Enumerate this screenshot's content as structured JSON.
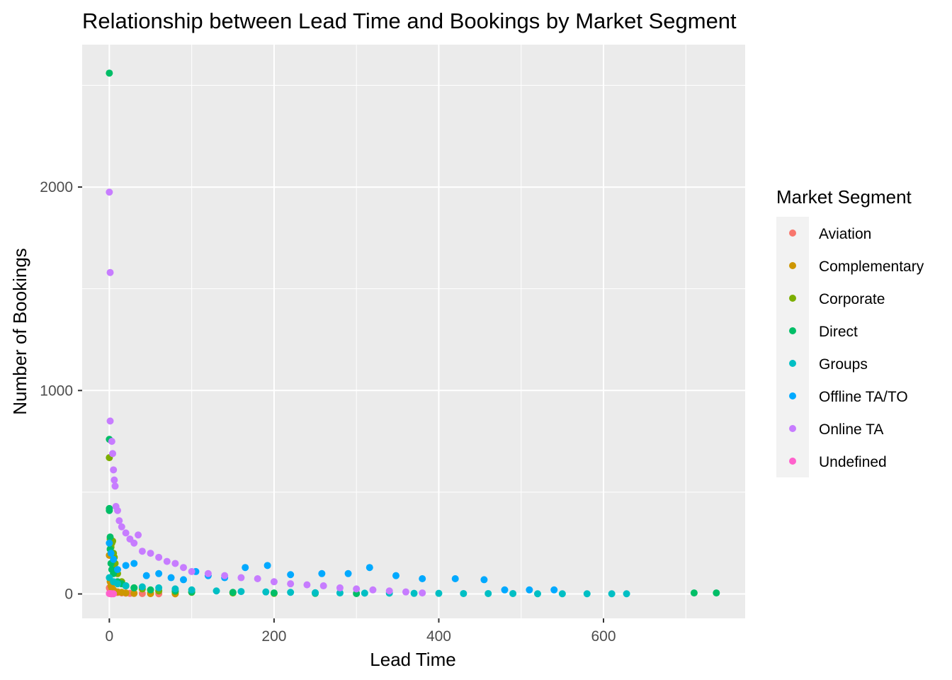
{
  "chart_data": {
    "type": "scatter",
    "title": "Relationship between Lead Time and Bookings by Market Segment",
    "xlabel": "Lead Time",
    "ylabel": "Number of Bookings",
    "xlim": [
      -33,
      772
    ],
    "ylim": [
      -120,
      2700
    ],
    "x_ticks": [
      0,
      200,
      400,
      600
    ],
    "y_ticks": [
      0,
      1000,
      2000
    ],
    "x_tick_labels": [
      "0",
      "200",
      "400",
      "600"
    ],
    "y_tick_labels": [
      "0",
      "1000",
      "2000"
    ],
    "grid": true,
    "legend": {
      "title": "Market Segment",
      "position": "right",
      "entries": [
        "Aviation",
        "Complementary",
        "Corporate",
        "Direct",
        "Groups",
        "Offline TA/TO",
        "Online TA",
        "Undefined"
      ]
    },
    "colors": {
      "Aviation": "#F8766D",
      "Complementary": "#CD9600",
      "Corporate": "#7CAE00",
      "Direct": "#00BE67",
      "Groups": "#00BFC4",
      "Offline TA/TO": "#00A9FF",
      "Online TA": "#C77CFF",
      "Undefined": "#FF61CC"
    },
    "series": [
      {
        "name": "Aviation",
        "x": [
          0,
          1,
          2,
          3,
          5,
          8,
          10,
          15,
          20,
          25,
          30,
          40,
          50,
          60,
          80
        ],
        "y": [
          30,
          20,
          15,
          12,
          10,
          8,
          7,
          5,
          4,
          3,
          3,
          2,
          2,
          1,
          1
        ]
      },
      {
        "name": "Complementary",
        "x": [
          0,
          1,
          2,
          3,
          5,
          10,
          15,
          20,
          30,
          50,
          80
        ],
        "y": [
          190,
          60,
          40,
          30,
          20,
          10,
          8,
          5,
          3,
          2,
          1
        ]
      },
      {
        "name": "Corporate",
        "x": [
          0,
          1,
          2,
          3,
          4,
          5,
          6,
          7,
          8,
          10,
          15,
          20,
          30,
          40,
          60,
          80,
          100,
          150,
          200
        ],
        "y": [
          670,
          270,
          230,
          250,
          260,
          200,
          180,
          150,
          120,
          100,
          60,
          40,
          30,
          25,
          15,
          12,
          8,
          5,
          3
        ]
      },
      {
        "name": "Direct",
        "x": [
          0,
          0,
          0,
          0,
          1,
          1,
          2,
          3,
          5,
          10,
          15,
          20,
          30,
          50,
          80,
          100,
          150,
          200,
          250,
          300,
          710,
          737
        ],
        "y": [
          2560,
          760,
          420,
          410,
          280,
          220,
          150,
          120,
          100,
          60,
          50,
          40,
          30,
          20,
          15,
          10,
          8,
          5,
          3,
          2,
          5,
          5
        ]
      },
      {
        "name": "Groups",
        "x": [
          0,
          5,
          10,
          20,
          40,
          60,
          80,
          100,
          130,
          160,
          190,
          220,
          250,
          280,
          310,
          340,
          370,
          400,
          430,
          460,
          490,
          520,
          550,
          580,
          610,
          628
        ],
        "y": [
          80,
          60,
          50,
          40,
          35,
          30,
          25,
          20,
          15,
          12,
          10,
          8,
          6,
          5,
          4,
          4,
          3,
          3,
          2,
          2,
          2,
          1,
          1,
          1,
          1,
          1
        ]
      },
      {
        "name": "Offline TA/TO",
        "x": [
          0,
          2,
          5,
          10,
          20,
          30,
          45,
          60,
          75,
          90,
          105,
          120,
          140,
          165,
          192,
          220,
          258,
          290,
          316,
          348,
          380,
          420,
          455,
          480,
          510,
          540
        ],
        "y": [
          250,
          200,
          170,
          120,
          140,
          150,
          90,
          100,
          80,
          70,
          110,
          90,
          80,
          130,
          140,
          95,
          100,
          100,
          130,
          90,
          75,
          75,
          70,
          20,
          20,
          20
        ]
      },
      {
        "name": "Online TA",
        "x": [
          0,
          1,
          1,
          3,
          4,
          5,
          6,
          7,
          8,
          10,
          12,
          15,
          20,
          25,
          30,
          35,
          40,
          50,
          60,
          70,
          80,
          90,
          100,
          120,
          140,
          160,
          180,
          200,
          220,
          240,
          260,
          280,
          300,
          320,
          340,
          360,
          380
        ],
        "y": [
          1975,
          1580,
          850,
          750,
          690,
          610,
          560,
          530,
          430,
          410,
          360,
          330,
          300,
          270,
          250,
          290,
          210,
          200,
          180,
          160,
          150,
          130,
          110,
          100,
          90,
          80,
          75,
          60,
          50,
          45,
          40,
          30,
          25,
          20,
          15,
          10,
          5
        ]
      },
      {
        "name": "Undefined",
        "x": [
          0,
          1,
          2,
          3,
          5
        ],
        "y": [
          2,
          2,
          1,
          1,
          1
        ]
      }
    ]
  }
}
